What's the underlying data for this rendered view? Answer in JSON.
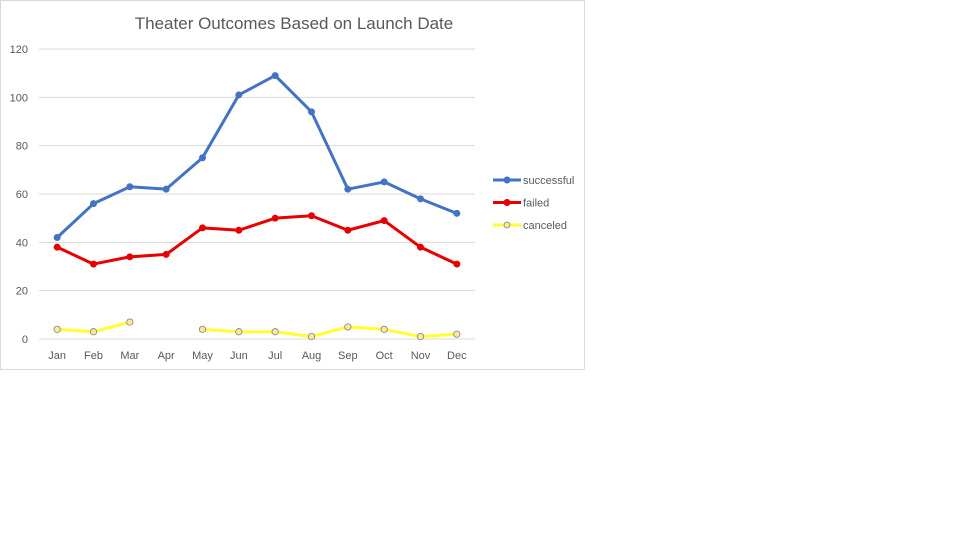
{
  "chart_data": {
    "type": "line",
    "title": "Theater Outcomes Based on Launch Date",
    "xlabel": "",
    "ylabel": "",
    "categories": [
      "Jan",
      "Feb",
      "Mar",
      "Apr",
      "May",
      "Jun",
      "Jul",
      "Aug",
      "Sep",
      "Oct",
      "Nov",
      "Dec"
    ],
    "ylim": [
      0,
      120
    ],
    "yticks": [
      0,
      20,
      40,
      60,
      80,
      100,
      120
    ],
    "grid": true,
    "legend_position": "right",
    "series": [
      {
        "name": "successful",
        "color": "#4472C4",
        "marker_fill": "#4472C4",
        "values": [
          42,
          56,
          63,
          62,
          75,
          101,
          109,
          94,
          62,
          65,
          58,
          52
        ]
      },
      {
        "name": "failed",
        "color": "#E60000",
        "marker_fill": "#E60000",
        "values": [
          38,
          31,
          34,
          35,
          46,
          45,
          50,
          51,
          45,
          49,
          38,
          31
        ]
      },
      {
        "name": "canceled",
        "color": "#FFFF33",
        "marker_fill": "#FFE699",
        "values": [
          4,
          3,
          7,
          null,
          4,
          3,
          3,
          1,
          5,
          4,
          1,
          2
        ]
      }
    ]
  }
}
